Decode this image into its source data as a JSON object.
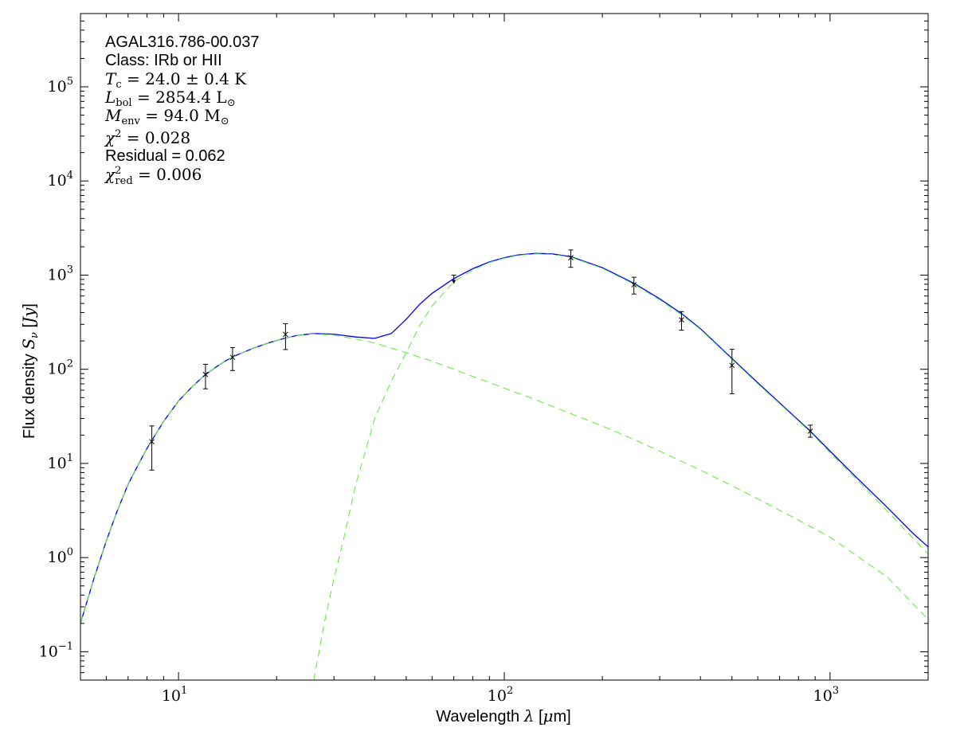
{
  "chart_data": {
    "type": "scatter",
    "title": "",
    "xlabel_prefix": "Wavelength ",
    "xlabel_symbol": "λ",
    "xlabel_unit_open": " [",
    "xlabel_unit_mu": "μ",
    "xlabel_unit_rest": "m]",
    "ylabel_prefix": "Flux density ",
    "ylabel_symbol": "S",
    "ylabel_sub": "ν",
    "ylabel_unit_open": " [",
    "ylabel_unit": "Jy",
    "ylabel_unit_close": "]",
    "xscale": "log",
    "yscale": "log",
    "xlim": [
      5,
      2000
    ],
    "ylim": [
      0.05,
      600000
    ],
    "grid": false,
    "x_ticks": [
      {
        "value": 10,
        "base": "10",
        "exp": "1"
      },
      {
        "value": 100,
        "base": "10",
        "exp": "2"
      },
      {
        "value": 1000,
        "base": "10",
        "exp": "3"
      }
    ],
    "y_ticks": [
      {
        "value": 0.1,
        "base": "10",
        "exp": "−1"
      },
      {
        "value": 1,
        "base": "10",
        "exp": "0"
      },
      {
        "value": 10,
        "base": "10",
        "exp": "1"
      },
      {
        "value": 100,
        "base": "10",
        "exp": "2"
      },
      {
        "value": 1000,
        "base": "10",
        "exp": "3"
      },
      {
        "value": 10000,
        "base": "10",
        "exp": "4"
      },
      {
        "value": 100000,
        "base": "10",
        "exp": "5"
      }
    ],
    "annotations": {
      "source": "AGAL316.786-00.037",
      "class_label": "Class: IRb or HII",
      "tc_sym": "T",
      "tc_sub": "c",
      "tc_rest": " = 24.0 ± 0.4 K",
      "lbol_sym": "L",
      "lbol_sub": "bol",
      "lbol_rest": " = 2854.4 L",
      "lbol_unit_sub": "⊙",
      "menv_sym": "M",
      "menv_sub": "env",
      "menv_rest": " = 94.0 M",
      "menv_unit_sub": "⊙",
      "chi_sym": "χ",
      "chi_sup": "2",
      "chi_rest": " = 0.028",
      "residual": "Residual = 0.062",
      "chired_sym": "χ",
      "chired_sup": "2",
      "chired_sub": "red",
      "chired_rest": " = 0.006"
    },
    "series": [
      {
        "type": "errorbar",
        "color": "#000000",
        "points": [
          {
            "x": 8.28,
            "y": 17,
            "ylo": 8.5,
            "yhi": 25
          },
          {
            "x": 12.1,
            "y": 88,
            "ylo": 62,
            "yhi": 113
          },
          {
            "x": 14.65,
            "y": 134,
            "ylo": 97,
            "yhi": 170
          },
          {
            "x": 21.3,
            "y": 235,
            "ylo": 162,
            "yhi": 305
          },
          {
            "x": 160,
            "y": 1530,
            "ylo": 1210,
            "yhi": 1850
          },
          {
            "x": 250,
            "y": 790,
            "ylo": 630,
            "yhi": 950
          },
          {
            "x": 350,
            "y": 335,
            "ylo": 260,
            "yhi": 410
          },
          {
            "x": 500,
            "y": 110,
            "ylo": 55,
            "yhi": 163
          },
          {
            "x": 870,
            "y": 22,
            "ylo": 19,
            "yhi": 25.5
          }
        ]
      },
      {
        "type": "upper_limit",
        "color": "#000000",
        "points": [
          {
            "x": 70,
            "y": 1000
          }
        ]
      },
      {
        "type": "line",
        "color": "#0000ff",
        "style": "solid",
        "points": [
          [
            5,
            0.2
          ],
          [
            5.5,
            0.6
          ],
          [
            6,
            1.5
          ],
          [
            6.5,
            3.2
          ],
          [
            7,
            6
          ],
          [
            7.5,
            9.5
          ],
          [
            8,
            14.5
          ],
          [
            9,
            28
          ],
          [
            10,
            46
          ],
          [
            11,
            65
          ],
          [
            12,
            86
          ],
          [
            13,
            105
          ],
          [
            14,
            124
          ],
          [
            15,
            140
          ],
          [
            17,
            168
          ],
          [
            19,
            192
          ],
          [
            21,
            212
          ],
          [
            23,
            228
          ],
          [
            26,
            240
          ],
          [
            30,
            236
          ],
          [
            35,
            220
          ],
          [
            40,
            213
          ],
          [
            45,
            240
          ],
          [
            50,
            340
          ],
          [
            55,
            490
          ],
          [
            60,
            640
          ],
          [
            70,
            920
          ],
          [
            80,
            1170
          ],
          [
            90,
            1380
          ],
          [
            100,
            1530
          ],
          [
            110,
            1640
          ],
          [
            125,
            1700
          ],
          [
            140,
            1680
          ],
          [
            160,
            1570
          ],
          [
            200,
            1200
          ],
          [
            250,
            820
          ],
          [
            300,
            560
          ],
          [
            350,
            390
          ],
          [
            400,
            270
          ],
          [
            500,
            130
          ],
          [
            600,
            72
          ],
          [
            700,
            44
          ],
          [
            870,
            22
          ],
          [
            1000,
            13.5
          ],
          [
            1200,
            7.2
          ],
          [
            1500,
            3.4
          ],
          [
            1800,
            1.8
          ],
          [
            2000,
            1.3
          ]
        ]
      },
      {
        "type": "line",
        "color": "#66ee44",
        "style": "dashed",
        "points": [
          [
            5,
            0.2
          ],
          [
            5.5,
            0.6
          ],
          [
            6,
            1.5
          ],
          [
            6.5,
            3.2
          ],
          [
            7,
            6
          ],
          [
            7.5,
            9.5
          ],
          [
            8,
            14.5
          ],
          [
            9,
            28
          ],
          [
            10,
            46
          ],
          [
            11,
            65
          ],
          [
            12,
            86
          ],
          [
            13,
            105
          ],
          [
            14,
            124
          ],
          [
            15,
            140
          ],
          [
            17,
            168
          ],
          [
            19,
            192
          ],
          [
            21,
            212
          ],
          [
            23,
            228
          ],
          [
            26,
            238
          ],
          [
            30,
            230
          ],
          [
            35,
            210
          ],
          [
            40,
            190
          ],
          [
            50,
            150
          ],
          [
            60,
            122
          ],
          [
            70,
            100
          ],
          [
            80,
            84
          ],
          [
            100,
            63
          ],
          [
            120,
            50
          ],
          [
            150,
            37
          ],
          [
            200,
            25
          ],
          [
            250,
            18
          ],
          [
            300,
            13.5
          ],
          [
            400,
            8.5
          ],
          [
            500,
            5.8
          ],
          [
            600,
            4.2
          ],
          [
            800,
            2.5
          ],
          [
            1000,
            1.65
          ],
          [
            1500,
            0.62
          ],
          [
            2000,
            0.22
          ]
        ]
      },
      {
        "type": "line",
        "color": "#66ee44",
        "style": "dashed",
        "points": [
          [
            26,
            0.05
          ],
          [
            27,
            0.1
          ],
          [
            28,
            0.2
          ],
          [
            30,
            0.6
          ],
          [
            32,
            1.5
          ],
          [
            35,
            6
          ],
          [
            38,
            16
          ],
          [
            40,
            30
          ],
          [
            45,
            75
          ],
          [
            50,
            150
          ],
          [
            55,
            290
          ],
          [
            60,
            470
          ],
          [
            70,
            850
          ],
          [
            80,
            1130
          ],
          [
            90,
            1360
          ],
          [
            100,
            1510
          ],
          [
            110,
            1620
          ],
          [
            125,
            1680
          ],
          [
            140,
            1660
          ],
          [
            160,
            1550
          ],
          [
            200,
            1180
          ],
          [
            250,
            800
          ],
          [
            300,
            545
          ],
          [
            350,
            380
          ],
          [
            400,
            265
          ],
          [
            500,
            127
          ],
          [
            600,
            70
          ],
          [
            700,
            43
          ],
          [
            870,
            21.5
          ],
          [
            1000,
            13
          ],
          [
            1200,
            6.9
          ],
          [
            1500,
            3.1
          ],
          [
            1800,
            1.6
          ],
          [
            2000,
            1.1
          ]
        ]
      }
    ]
  }
}
